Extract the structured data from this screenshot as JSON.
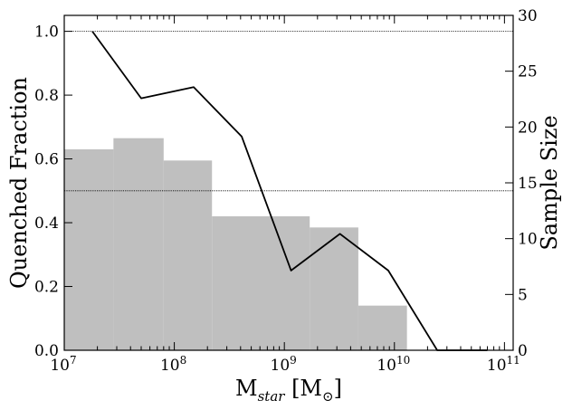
{
  "chart_data": {
    "type": "bar+line",
    "xscale": "log",
    "xlim": [
      10000000,
      120000000000
    ],
    "ylim_left": [
      0,
      1.05
    ],
    "ylim_right": [
      0,
      30
    ],
    "x_ticks": [
      {
        "value": 10000000,
        "base": "10",
        "exp": "7"
      },
      {
        "value": 100000000,
        "base": "10",
        "exp": "8"
      },
      {
        "value": 1000000000,
        "base": "10",
        "exp": "9"
      },
      {
        "value": 10000000000,
        "base": "10",
        "exp": "10"
      },
      {
        "value": 100000000000,
        "base": "10",
        "exp": "11"
      }
    ],
    "y_left_ticks": [
      "0.0",
      "0.2",
      "0.4",
      "0.6",
      "0.8",
      "1.0"
    ],
    "y_right_ticks": [
      "0",
      "5",
      "10",
      "15",
      "20",
      "25",
      "30"
    ],
    "xlabel": {
      "main": "M",
      "sub": "star",
      "unit_open": " [M",
      "unit_sub": "⊙",
      "unit_close": "]"
    },
    "ylabel_left": "Quenched Fraction",
    "ylabel_right": "Sample Size",
    "hlines_left": [
      1.0,
      0.5
    ],
    "histogram": {
      "edges": [
        10000000,
        28000000,
        80000000,
        220000000,
        1700000000,
        4700000000,
        13000000000
      ],
      "counts": [
        18,
        19,
        17,
        12,
        11,
        4
      ],
      "color": "#bfbfbf"
    },
    "quenched_fraction": {
      "x": [
        18000000,
        50000000,
        150000000,
        410000000,
        1150000000,
        3200000000,
        8800000000,
        24500000000,
        70000000000
      ],
      "y": [
        1.0,
        0.79,
        0.825,
        0.67,
        0.25,
        0.365,
        0.25,
        0.0,
        0.0
      ],
      "color": "#000000"
    }
  }
}
